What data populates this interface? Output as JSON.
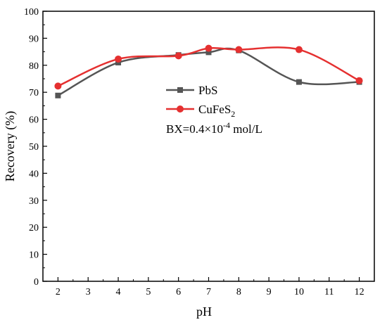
{
  "chart_data": {
    "type": "line",
    "xlabel": "pH",
    "ylabel": "Recovery (%)",
    "xlim": [
      1.5,
      12.5
    ],
    "ylim": [
      0,
      100
    ],
    "xticks": [
      2,
      3,
      4,
      5,
      6,
      7,
      8,
      9,
      10,
      11,
      12
    ],
    "yticks": [
      0,
      10,
      20,
      30,
      40,
      50,
      60,
      70,
      80,
      90,
      100
    ],
    "legend_position": "center",
    "grid": false,
    "series": [
      {
        "name": "PbS",
        "color": "#555555",
        "marker": "square",
        "x": [
          2,
          4,
          6,
          7,
          8,
          10,
          12
        ],
        "y": [
          68.8,
          81.0,
          83.8,
          84.8,
          85.5,
          73.8,
          73.8
        ]
      },
      {
        "name": "CuFeS2",
        "name_base": "CuFeS",
        "name_sub": "2",
        "color": "#e53030",
        "marker": "circle",
        "x": [
          2,
          4,
          6,
          7,
          8,
          10,
          12
        ],
        "y": [
          72.3,
          82.3,
          83.5,
          86.3,
          85.8,
          85.8,
          74.3
        ]
      }
    ],
    "annotation": {
      "prefix": "BX=0.4×10",
      "superscript": "-4",
      "suffix": " mol/L"
    }
  }
}
